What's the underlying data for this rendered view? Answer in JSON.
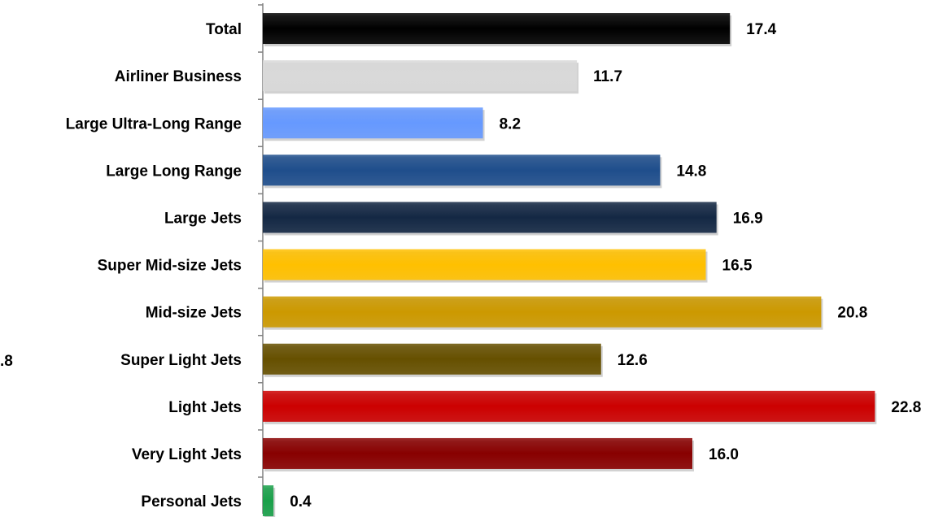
{
  "chart_data": {
    "type": "bar",
    "orientation": "horizontal",
    "categories": [
      "Total",
      "Airliner Business",
      "Large Ultra-Long Range",
      "Large Long Range",
      "Large Jets",
      "Super Mid-size Jets",
      "Mid-size Jets",
      "Super Light Jets",
      "Light Jets",
      "Very Light Jets",
      "Personal Jets"
    ],
    "values": [
      17.4,
      11.7,
      8.2,
      14.8,
      16.9,
      16.5,
      20.8,
      12.6,
      22.8,
      16.0,
      0.4
    ],
    "value_labels": [
      "17.4",
      "11.7",
      "8.2",
      "14.8",
      "16.9",
      "16.5",
      "20.8",
      "12.6",
      "22.8",
      "16.0",
      "0.4"
    ],
    "colors": [
      "#000000",
      "#d9d9d9",
      "#6699ff",
      "#1f4e8c",
      "#142844",
      "#ffc000",
      "#cc9900",
      "#665000",
      "#cc0000",
      "#880000",
      "#1aa04a"
    ],
    "xlim": [
      0,
      25
    ],
    "grid": false,
    "legend": "none",
    "title": "",
    "xlabel": "",
    "ylabel": ""
  },
  "stray_text": ".8"
}
